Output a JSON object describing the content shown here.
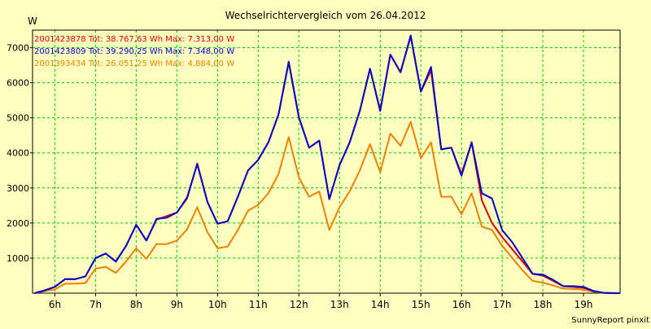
{
  "chart_data": {
    "type": "line",
    "title": "Wechselrichtervergleich vom 26.04.2012",
    "ylabel": "W",
    "xlabel": "",
    "footer": "SunnyReport pinxit",
    "ylim": [
      0,
      7500
    ],
    "yticks": [
      1000,
      2000,
      3000,
      4000,
      5000,
      6000,
      7000
    ],
    "xlim": [
      5.45,
      19.9
    ],
    "xtick_values": [
      6,
      7,
      8,
      9,
      10,
      11,
      12,
      13,
      14,
      15,
      16,
      17,
      18,
      19
    ],
    "xtick_labels": [
      "6h",
      "7h",
      "8h",
      "9h",
      "10h",
      "11h",
      "12h",
      "13h",
      "14h",
      "15h",
      "16h",
      "17h",
      "18h",
      "19h"
    ],
    "grid": true,
    "legend_position": "top-left",
    "x": [
      5.5,
      5.75,
      6.0,
      6.25,
      6.5,
      6.75,
      7.0,
      7.25,
      7.5,
      7.75,
      8.0,
      8.25,
      8.5,
      8.75,
      9.0,
      9.25,
      9.5,
      9.75,
      10.0,
      10.25,
      10.5,
      10.75,
      11.0,
      11.25,
      11.5,
      11.75,
      12.0,
      12.25,
      12.5,
      12.75,
      13.0,
      13.25,
      13.5,
      13.75,
      14.0,
      14.25,
      14.5,
      14.75,
      15.0,
      15.25,
      15.5,
      15.75,
      16.0,
      16.25,
      16.5,
      16.75,
      17.0,
      17.25,
      17.5,
      17.75,
      18.0,
      18.25,
      18.5,
      18.75,
      19.0,
      19.25,
      19.5,
      19.75,
      19.9
    ],
    "series": [
      {
        "name": "2001423878",
        "legend": "2001423878 Tot: 38.767,63 Wh Max: 7.313,00 W",
        "color": "#e00000",
        "values": [
          0,
          80,
          180,
          400,
          400,
          480,
          1000,
          1130,
          900,
          1350,
          1950,
          1500,
          2100,
          2200,
          2300,
          2700,
          3700,
          2600,
          1980,
          2050,
          2750,
          3500,
          3800,
          4300,
          5100,
          6580,
          5000,
          4150,
          4350,
          2680,
          3650,
          4300,
          5200,
          6400,
          5200,
          6800,
          6300,
          7313,
          5750,
          6350,
          4100,
          4150,
          3400,
          4300,
          2650,
          2000,
          1600,
          1250,
          900,
          550,
          500,
          350,
          200,
          180,
          150,
          60,
          10,
          0,
          0
        ]
      },
      {
        "name": "2001423809",
        "legend": "2001423809 Tot: 39.290,25 Wh Max: 7.348,00 W",
        "color": "#0000c8",
        "values": [
          0,
          80,
          180,
          400,
          400,
          480,
          1000,
          1130,
          900,
          1350,
          1950,
          1500,
          2120,
          2150,
          2300,
          2730,
          3680,
          2600,
          1980,
          2050,
          2750,
          3500,
          3800,
          4300,
          5100,
          6600,
          5020,
          4150,
          4350,
          2680,
          3650,
          4300,
          5200,
          6400,
          5200,
          6800,
          6300,
          7348,
          5750,
          6450,
          4100,
          4150,
          3350,
          4300,
          2850,
          2700,
          1800,
          1450,
          1000,
          550,
          530,
          380,
          200,
          200,
          180,
          60,
          10,
          0,
          0
        ]
      },
      {
        "name": "2001393434",
        "legend": "2001393434 Tot: 26.051,25 Wh Max: 4.884,00 W",
        "color": "#f08000",
        "values": [
          0,
          60,
          110,
          270,
          270,
          290,
          700,
          750,
          580,
          900,
          1280,
          980,
          1400,
          1400,
          1500,
          1820,
          2450,
          1740,
          1280,
          1330,
          1800,
          2350,
          2520,
          2850,
          3400,
          4450,
          3300,
          2750,
          2900,
          1800,
          2450,
          2900,
          3500,
          4250,
          3450,
          4550,
          4200,
          4884,
          3850,
          4300,
          2750,
          2750,
          2250,
          2850,
          1900,
          1800,
          1350,
          1000,
          650,
          350,
          300,
          220,
          130,
          120,
          100,
          40,
          5,
          0,
          0
        ]
      }
    ]
  }
}
